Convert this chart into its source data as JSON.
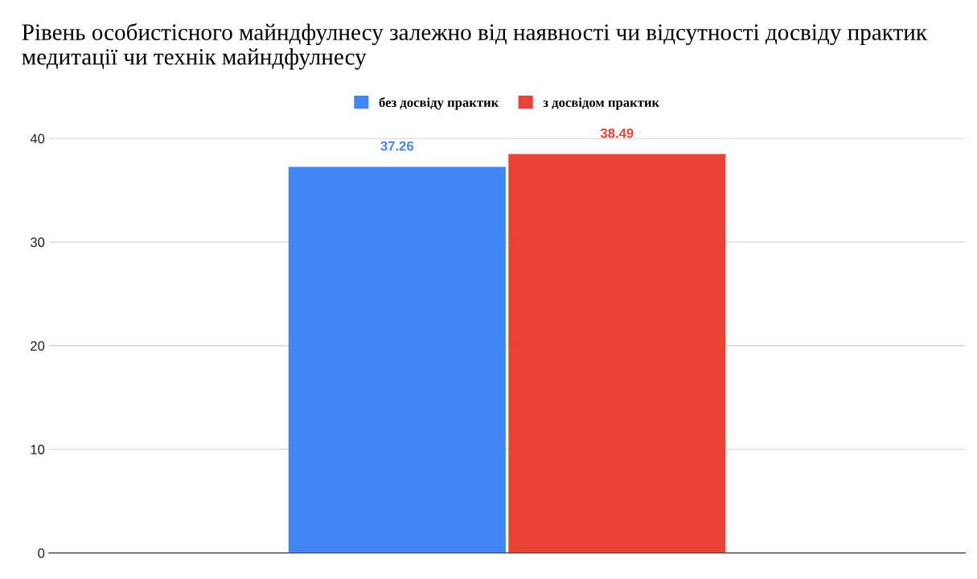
{
  "chart_data": {
    "type": "bar",
    "title": "Рівень особистісного майндфулнесу залежно від наявності чи відсутності досвіду практик медитації чи технік майндфулнесу",
    "categories": [
      null
    ],
    "series": [
      {
        "name": "без досвіду практик",
        "color": "#4285f4",
        "values": [
          37.26
        ]
      },
      {
        "name": "з досвідом практик",
        "color": "#ea4335",
        "values": [
          38.49
        ]
      }
    ],
    "ylim": [
      0,
      40
    ],
    "yticks": [
      0,
      10,
      20,
      30,
      40
    ],
    "grid": "y",
    "legend": "top",
    "data_labels": true
  }
}
